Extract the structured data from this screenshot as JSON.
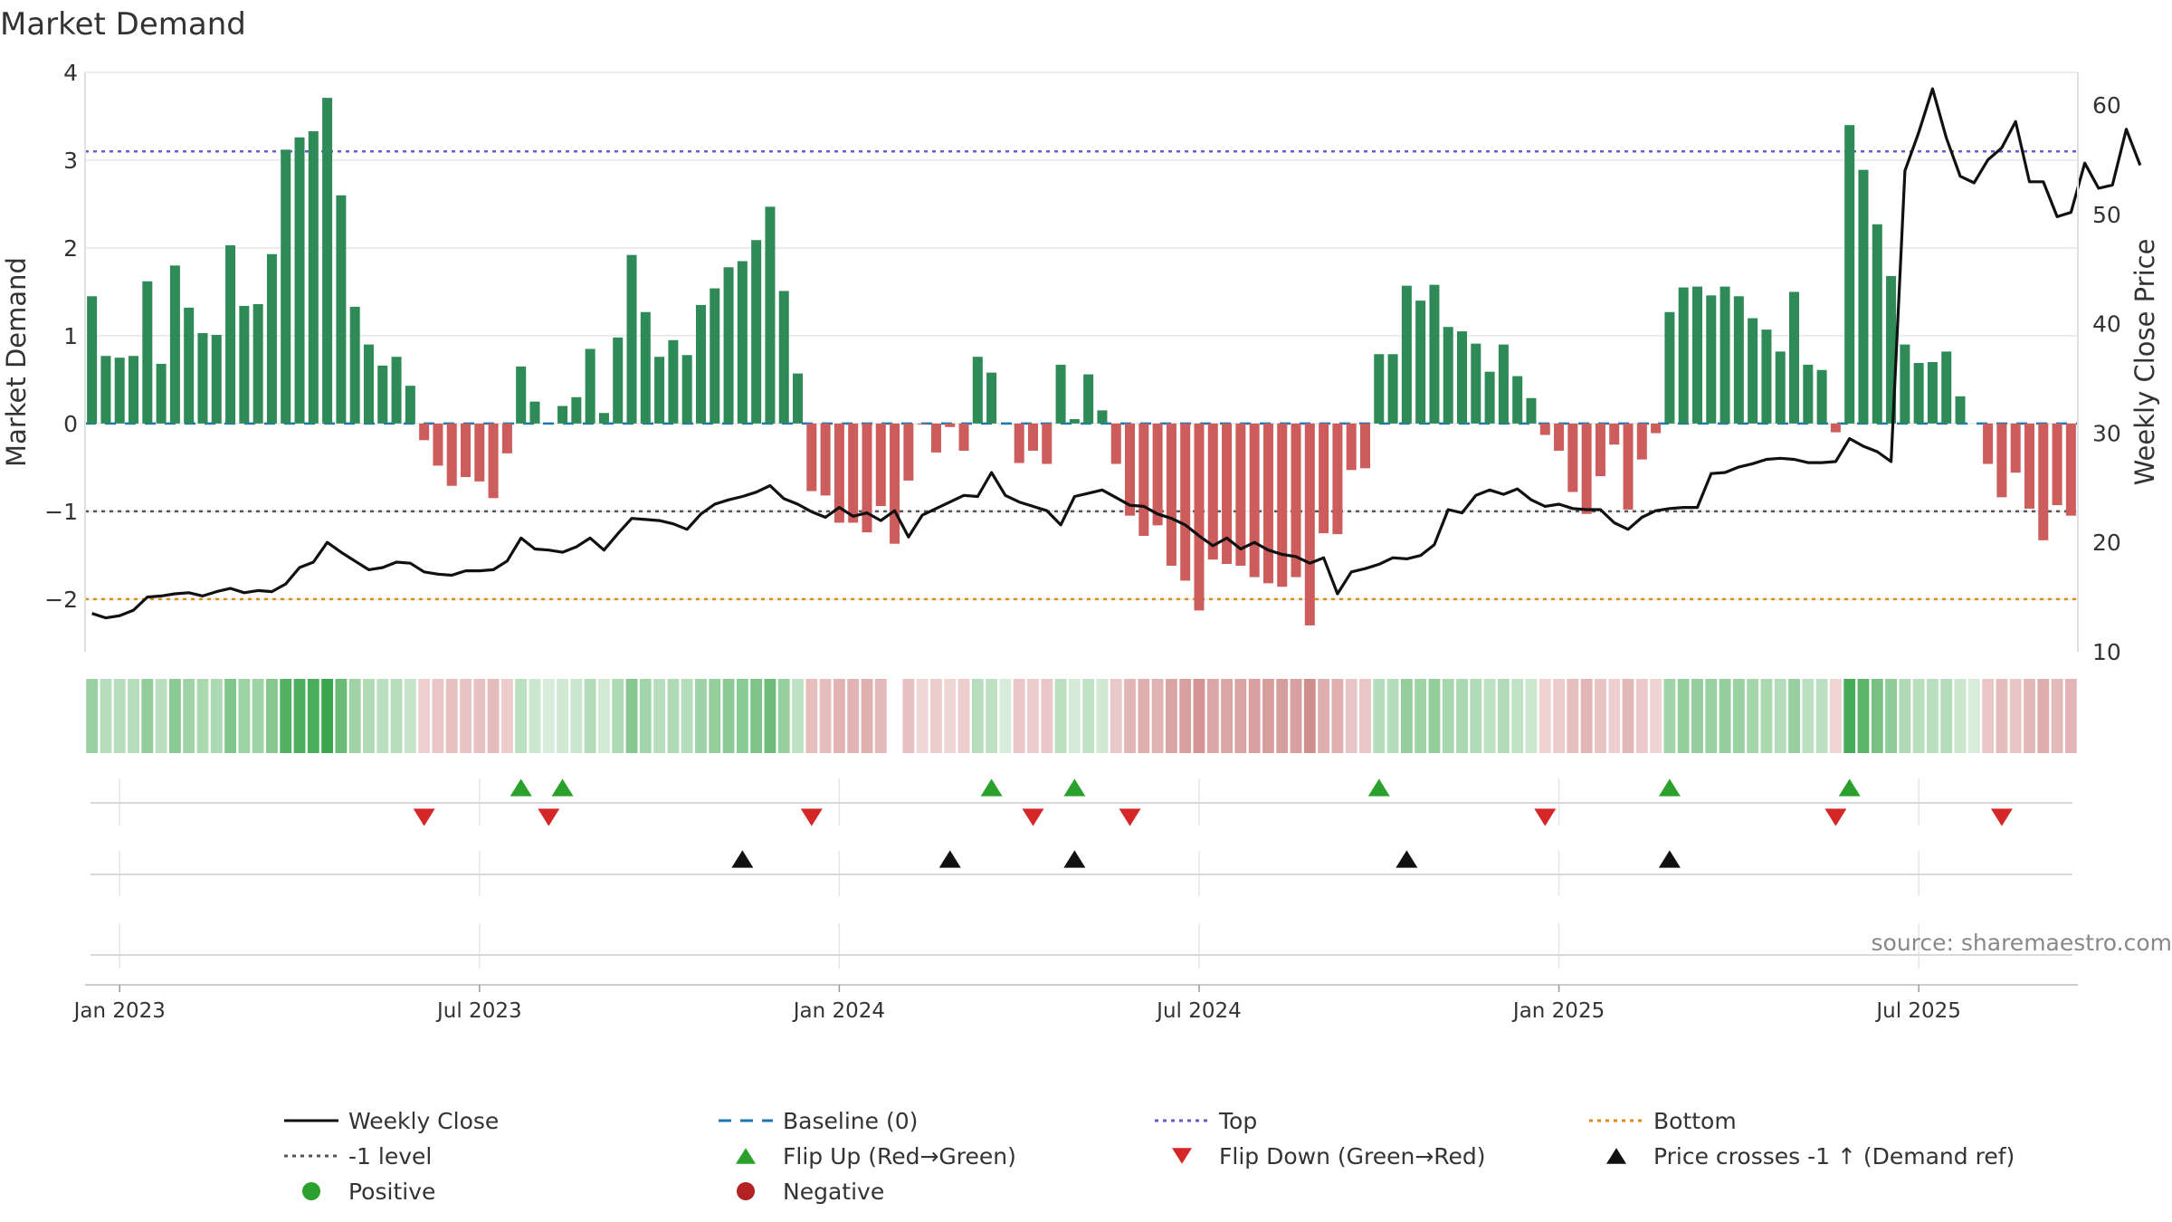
{
  "chart_data": {
    "type": "bar",
    "title": "Market Demand",
    "ylabel": "Market Demand",
    "y2label": "Weekly Close Price",
    "ylim": [
      -2.6,
      4.0
    ],
    "y2lim": [
      10,
      63
    ],
    "yticks": [
      4,
      3,
      2,
      1,
      0,
      -1,
      -2
    ],
    "y2ticks": [
      60,
      50,
      40,
      30,
      20,
      10
    ],
    "xticks": [
      {
        "label": "Jan 2023",
        "week": 2
      },
      {
        "label": "Jul 2023",
        "week": 28
      },
      {
        "label": "Jan 2024",
        "week": 54
      },
      {
        "label": "Jul 2024",
        "week": 80
      },
      {
        "label": "Jan 2025",
        "week": 106
      },
      {
        "label": "Jul 2025",
        "week": 132
      }
    ],
    "reference_lines": {
      "top": 3.1,
      "minus_one": -1.0,
      "bottom": -2.0,
      "baseline": 0
    },
    "demand": [
      1.45,
      0.77,
      0.75,
      0.77,
      1.62,
      0.68,
      1.8,
      1.32,
      1.03,
      1.01,
      2.03,
      1.34,
      1.36,
      1.93,
      3.12,
      3.26,
      3.33,
      3.71,
      2.6,
      1.33,
      0.9,
      0.66,
      0.76,
      0.43,
      -0.19,
      -0.48,
      -0.71,
      -0.61,
      -0.66,
      -0.85,
      -0.34,
      0.65,
      0.25,
      0,
      0.2,
      0.3,
      0.85,
      0.12,
      0.98,
      1.92,
      1.27,
      0.76,
      0.95,
      0.78,
      1.35,
      1.54,
      1.78,
      1.85,
      2.09,
      2.47,
      1.51,
      0.57,
      -0.77,
      -0.82,
      -1.13,
      -1.13,
      -1.24,
      -0.94,
      -1.37,
      -0.65,
      -0.01,
      -0.33,
      -0.04,
      -0.31,
      0.76,
      0.58,
      0,
      -0.45,
      -0.31,
      -0.46,
      0.67,
      0.05,
      0.56,
      0.15,
      -0.46,
      -1.05,
      -1.28,
      -1.16,
      -1.62,
      -1.79,
      -2.13,
      -1.55,
      -1.6,
      -1.62,
      -1.75,
      -1.82,
      -1.86,
      -1.75,
      -2.3,
      -1.25,
      -1.26,
      -0.53,
      -0.51,
      0.79,
      0.79,
      1.57,
      1.4,
      1.58,
      1.1,
      1.05,
      0.91,
      0.59,
      0.9,
      0.54,
      0.29,
      -0.13,
      -0.31,
      -0.78,
      -1.03,
      -0.6,
      -0.24,
      -0.98,
      -0.41,
      -0.11,
      1.27,
      1.55,
      1.56,
      1.46,
      1.56,
      1.45,
      1.2,
      1.07,
      0.82,
      1.5,
      0.67,
      0.61,
      -0.1,
      3.4,
      2.89,
      2.27,
      1.68,
      0.9,
      0.69,
      0.7,
      0.82,
      0.31,
      0,
      -0.46,
      -0.84,
      -0.56,
      -0.97,
      -1.33,
      -0.93,
      -1.05
    ],
    "close": [
      13.5,
      13.1,
      13.3,
      13.8,
      15,
      15.1,
      15.3,
      15.4,
      15.1,
      15.5,
      15.8,
      15.4,
      15.6,
      15.5,
      16.2,
      17.7,
      18.2,
      20,
      19.1,
      18.3,
      17.5,
      17.7,
      18.2,
      18.1,
      17.3,
      17.1,
      17,
      17.4,
      17.4,
      17.5,
      18.3,
      20.4,
      19.4,
      19.3,
      19.1,
      19.6,
      20.4,
      19.3,
      20.8,
      22.2,
      22.1,
      22,
      21.7,
      21.2,
      22.6,
      23.5,
      23.9,
      24.2,
      24.6,
      25.2,
      24,
      23.5,
      22.8,
      22.3,
      23.2,
      22.4,
      22.7,
      22,
      22.9,
      20.5,
      22.5,
      23.1,
      23.7,
      24.3,
      24.2,
      26.4,
      24.3,
      23.7,
      23.3,
      22.9,
      21.6,
      24.2,
      24.5,
      24.8,
      24.1,
      23.4,
      23.3,
      22.6,
      22.2,
      21.6,
      20.6,
      19.7,
      20.4,
      19.4,
      20,
      19.3,
      18.9,
      18.7,
      18.1,
      18.6,
      15.3,
      17.3,
      17.6,
      18,
      18.6,
      18.5,
      18.8,
      19.8,
      23,
      22.7,
      24.3,
      24.8,
      24.4,
      24.9,
      23.9,
      23.3,
      23.5,
      23.1,
      23,
      23,
      21.8,
      21.2,
      22.3,
      22.9,
      23.1,
      23.2,
      23.2,
      26.3,
      26.4,
      26.9,
      27.2,
      27.6,
      27.7,
      27.6,
      27.3,
      27.3,
      27.4,
      29.5,
      28.8,
      28.3,
      27.4,
      54,
      57.5,
      61.5,
      57,
      53.5,
      52.9,
      55,
      56.1,
      58.5,
      53,
      53,
      49.8,
      50.2,
      54.7,
      52.4,
      52.7,
      57.8,
      54.5
    ],
    "heat_gaps": [
      58
    ],
    "flip_up_weeks": [
      31,
      34,
      65,
      71,
      93,
      114,
      127
    ],
    "flip_down_weeks": [
      24,
      33,
      52,
      68,
      75,
      105,
      126,
      138
    ],
    "price_cross_weeks": [
      47,
      62,
      71,
      95,
      114
    ],
    "source": "source: sharemaestro.com",
    "legend": [
      {
        "label": "Weekly Close",
        "symbol": "line-solid",
        "color": "#111111"
      },
      {
        "label": "Baseline (0)",
        "symbol": "line-dashed",
        "color": "#1f77b4"
      },
      {
        "label": "Top",
        "symbol": "line-dotted",
        "color": "#6a5acd"
      },
      {
        "label": "Bottom",
        "symbol": "line-dotted",
        "color": "#e08a1e"
      },
      {
        "label": "-1 level",
        "symbol": "line-dotted",
        "color": "#555555"
      },
      {
        "label": "Flip Up (Red→Green)",
        "symbol": "triangle-up",
        "color": "#2ca02c"
      },
      {
        "label": "Flip Down (Green→Red)",
        "symbol": "triangle-down",
        "color": "#d62728"
      },
      {
        "label": "Price crosses -1 ↑ (Demand ref)",
        "symbol": "triangle-up",
        "color": "#111111"
      },
      {
        "label": "Positive",
        "symbol": "dot",
        "color": "#2ca02c"
      },
      {
        "label": "Negative",
        "symbol": "dot",
        "color": "#b22222"
      }
    ],
    "colors": {
      "positive_bar": "#2e8b57",
      "negative_bar": "#cd5c5c",
      "close_line": "#111111",
      "baseline": "#1f77b4",
      "top": "#6a5acd",
      "minus_one": "#555555",
      "bottom": "#e08a1e",
      "flip_up": "#2ca02c",
      "flip_down": "#d62728",
      "cross": "#111111",
      "grid": "#e6e6e6",
      "text": "#333333"
    }
  }
}
